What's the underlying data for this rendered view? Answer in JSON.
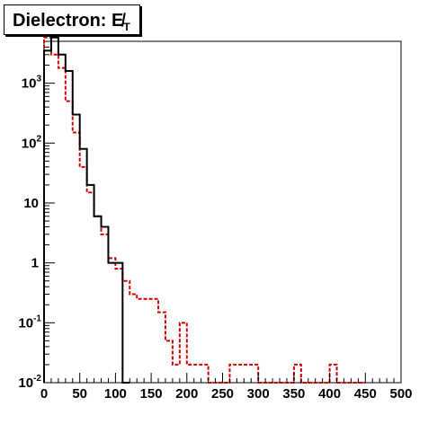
{
  "title": {
    "prefix": "Dielectron: ",
    "symbol": "E̸",
    "subscript": "T"
  },
  "chart_data": {
    "type": "histogram",
    "xlim": [
      0,
      500
    ],
    "ylim": [
      0.01,
      5000
    ],
    "ylog": true,
    "bin_width": 10,
    "x_ticks": [
      0,
      50,
      100,
      150,
      200,
      250,
      300,
      350,
      400,
      450,
      500
    ],
    "y_ticks": [
      {
        "base": "10",
        "exp": "-2",
        "value": 0.01
      },
      {
        "base": "10",
        "exp": "-1",
        "value": 0.1
      },
      {
        "base": "1",
        "exp": "",
        "value": 1
      },
      {
        "base": "10",
        "exp": "",
        "value": 10
      },
      {
        "base": "10",
        "exp": "2",
        "value": 100
      },
      {
        "base": "10",
        "exp": "3",
        "value": 1000
      }
    ],
    "series": [
      {
        "style": "solid",
        "color": "#000000",
        "bin_edges": [
          0,
          10,
          20,
          30,
          40,
          50,
          60,
          70,
          80,
          90,
          100,
          110,
          120
        ],
        "values": [
          3500,
          5800,
          3000,
          1600,
          300,
          80,
          20,
          6,
          4,
          1,
          1,
          0.01
        ]
      },
      {
        "style": "dashed",
        "color": "#d40000",
        "bin_edges": [
          0,
          10,
          20,
          30,
          40,
          50,
          60,
          70,
          80,
          90,
          100,
          110,
          120,
          130,
          140,
          150,
          160,
          170,
          180,
          190,
          200,
          210,
          220,
          230,
          260,
          300,
          350,
          360,
          400,
          410,
          450
        ],
        "values": [
          5800,
          3000,
          1800,
          500,
          150,
          40,
          15,
          6,
          3,
          1.2,
          0.8,
          0.5,
          0.3,
          0.25,
          0.25,
          0.25,
          0.15,
          0.05,
          0.02,
          0.1,
          0.02,
          0.02,
          0.02,
          0.01,
          0.02,
          0.01,
          0.02,
          0.01,
          0.02,
          0.01
        ]
      }
    ]
  }
}
